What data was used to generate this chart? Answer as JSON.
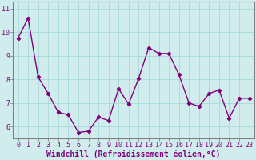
{
  "x": [
    0,
    1,
    2,
    3,
    4,
    5,
    6,
    7,
    8,
    9,
    10,
    11,
    12,
    13,
    14,
    15,
    16,
    17,
    18,
    19,
    20,
    21,
    22,
    23
  ],
  "y": [
    9.75,
    10.6,
    8.1,
    7.4,
    6.6,
    6.5,
    5.75,
    5.8,
    6.4,
    6.25,
    7.6,
    6.95,
    8.05,
    9.35,
    9.1,
    9.1,
    8.2,
    7.0,
    6.85,
    7.4,
    7.55,
    6.35,
    7.2,
    7.2
  ],
  "line_color": "#800080",
  "marker": "D",
  "marker_size": 2.2,
  "linewidth": 1.0,
  "xlabel": "Windchill (Refroidissement éolien,°C)",
  "xlabel_fontsize": 7,
  "ylim": [
    5.5,
    11.3
  ],
  "xlim": [
    -0.5,
    23.5
  ],
  "yticks": [
    6,
    7,
    8,
    9,
    10,
    11
  ],
  "xticks": [
    0,
    1,
    2,
    3,
    4,
    5,
    6,
    7,
    8,
    9,
    10,
    11,
    12,
    13,
    14,
    15,
    16,
    17,
    18,
    19,
    20,
    21,
    22,
    23
  ],
  "grid_color": "#a8d8d8",
  "bg_color": "#d0ecec",
  "tick_fontsize": 6,
  "spine_color": "#808080",
  "tick_color": "#800080"
}
